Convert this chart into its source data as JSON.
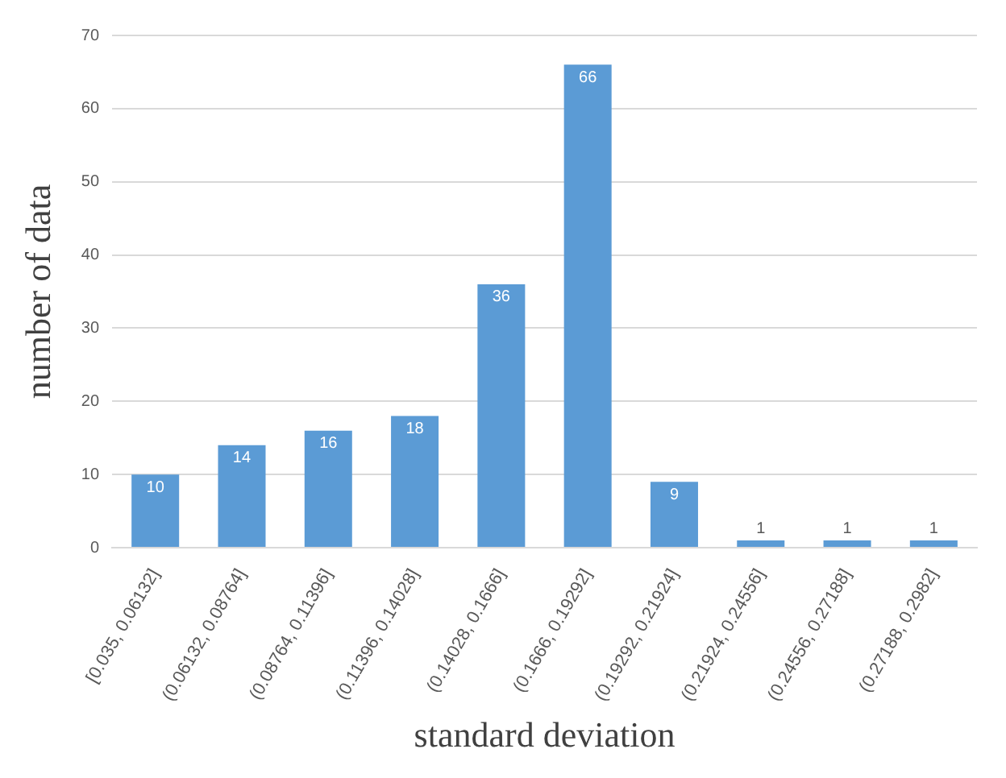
{
  "chart_data": {
    "type": "bar",
    "xlabel": "standard deviation",
    "ylabel": "number of data",
    "categories": [
      "[0.035, 0.06132]",
      "(0.06132, 0.08764]",
      "(0.08764, 0.11396]",
      "(0.11396, 0.14028]",
      "(0.14028, 0.1666]",
      "(0.1666, 0.19292]",
      "(0.19292, 0.21924]",
      "(0.21924, 0.24556]",
      "(0.24556, 0.27188]",
      "(0.27188, 0.2982]"
    ],
    "values": [
      10,
      14,
      16,
      18,
      36,
      66,
      9,
      1,
      1,
      1
    ],
    "color": "#5b9bd5",
    "ylim": [
      0,
      70
    ],
    "yticks": [
      0,
      10,
      20,
      30,
      40,
      50,
      60,
      70
    ],
    "grid": "y",
    "data_labels": true,
    "legend": false
  }
}
